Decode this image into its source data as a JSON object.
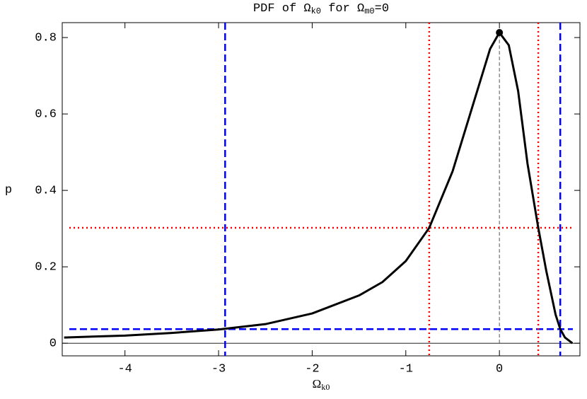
{
  "chart_data": {
    "type": "line",
    "title": [
      {
        "text": "PDF of Ω"
      },
      {
        "text": "k0",
        "sub": true
      },
      {
        "text": " for Ω"
      },
      {
        "text": "m0",
        "sub": true
      },
      {
        "text": "=0"
      }
    ],
    "xlabel": [
      {
        "text": "Ω"
      },
      {
        "text": "k0",
        "sub": true
      }
    ],
    "ylabel": "p",
    "series": [
      {
        "color": "#000000",
        "x": [
          -4.65,
          -4,
          -3.5,
          -3,
          -2.5,
          -2,
          -1.5,
          -1.25,
          -1,
          -0.75,
          -0.5,
          -0.25,
          -0.1,
          0,
          0.1,
          0.2,
          0.3,
          0.415,
          0.5,
          0.6,
          0.65,
          0.7,
          0.78
        ],
        "values": [
          0.015,
          0.02,
          0.027,
          0.036,
          0.05,
          0.078,
          0.125,
          0.16,
          0.215,
          0.302,
          0.45,
          0.65,
          0.77,
          0.813,
          0.78,
          0.66,
          0.47,
          0.302,
          0.19,
          0.075,
          0.037,
          0.015,
          0.0
        ]
      }
    ],
    "mode_point": {
      "x": 0,
      "y": 0.813,
      "color": "#000000"
    },
    "vlines": [
      {
        "x": -2.93,
        "color": "#0000ff",
        "style": "dashed"
      },
      {
        "x": 0.65,
        "color": "#0000ff",
        "style": "dashed"
      },
      {
        "x": -0.75,
        "color": "#ff0000",
        "style": "dotted"
      },
      {
        "x": 0.415,
        "color": "#ff0000",
        "style": "dotted"
      }
    ],
    "hlines": [
      {
        "y": 0.037,
        "color": "#0000ff",
        "style": "dashed"
      },
      {
        "y": 0.302,
        "color": "#ff0000",
        "style": "dotted"
      }
    ],
    "xlim": [
      -4.67,
      0.86
    ],
    "ylim": [
      -0.033,
      0.839
    ],
    "xticks": [
      -4,
      -3,
      -2,
      -1,
      0
    ],
    "yticks": [
      0,
      0.2,
      0.4,
      0.6,
      0.8
    ]
  }
}
